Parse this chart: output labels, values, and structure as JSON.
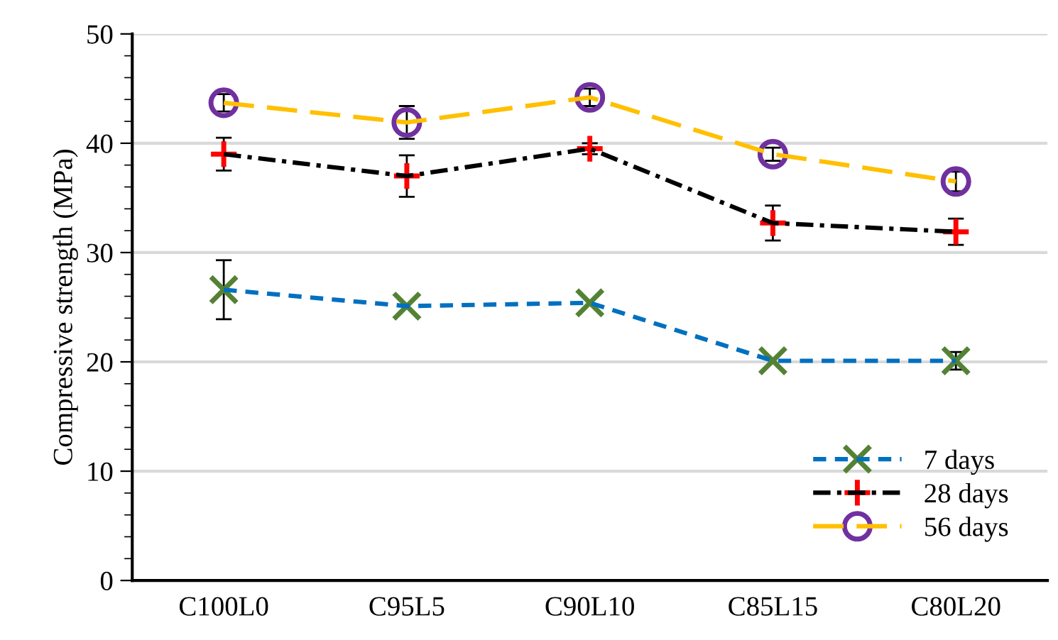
{
  "chart_data": {
    "type": "line",
    "ylabel": "Compressive strength (MPa)",
    "categories": [
      "C100L0",
      "C95L5",
      "C90L10",
      "C85L15",
      "C80L20"
    ],
    "ylim": [
      0,
      50
    ],
    "yticks": [
      0,
      10,
      20,
      30,
      40,
      50
    ],
    "grid": "y",
    "legend": "bottom right",
    "series": [
      {
        "name": "7 days",
        "color": "#0070c0",
        "colors": [
          "#548235",
          "#548235",
          "#548235",
          "#548235",
          "#548235"
        ],
        "marker": "cross",
        "line_style": "dashed",
        "values": [
          26.6,
          25.1,
          25.4,
          20.1,
          20.1
        ],
        "errors": [
          2.7,
          null,
          null,
          null,
          0.8
        ]
      },
      {
        "name": "28 days",
        "color": "#000000",
        "colors": [
          "#ff0000",
          "#ff0000",
          "#ff0000",
          "#ff0000",
          "#ff0000"
        ],
        "marker": "plus",
        "line_style": "dashdot",
        "values": [
          39.0,
          37.0,
          39.5,
          32.7,
          31.9
        ],
        "errors": [
          1.5,
          1.9,
          0.5,
          1.6,
          1.2
        ]
      },
      {
        "name": "56 days",
        "color": "#ffc000",
        "colors": [
          "#7030a0",
          "#7030a0",
          "#7030a0",
          "#7030a0",
          "#7030a0"
        ],
        "marker": "circle",
        "line_style": "longdash",
        "values": [
          43.7,
          41.9,
          44.2,
          39.0,
          36.5
        ],
        "errors": [
          0.8,
          1.5,
          0.8,
          0.6,
          0.9
        ]
      }
    ]
  }
}
